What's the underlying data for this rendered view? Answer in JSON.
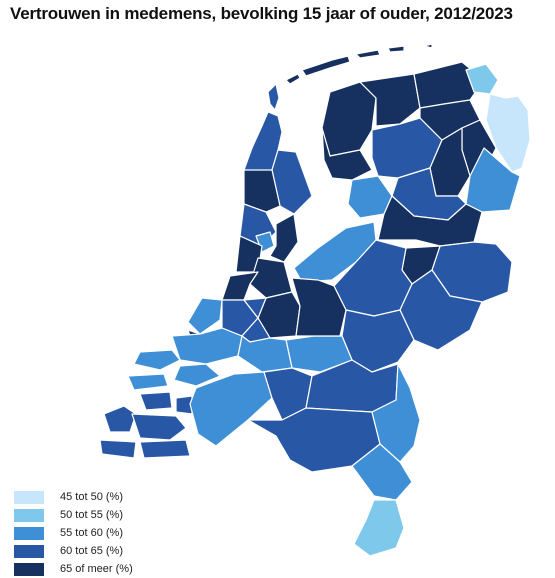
{
  "title": "Vertrouwen in medemens, bevolking 15 jaar of ouder, 2012/2023",
  "colors": {
    "c1": "#c8e6fb",
    "c2": "#7dc8eb",
    "c3": "#3f8fd6",
    "c4": "#2857a5",
    "c5": "#16305f",
    "water": "#ffffff",
    "border": "#ffffff"
  },
  "legend": [
    {
      "label": "45 tot 50 (%)",
      "color": "#c8e6fb"
    },
    {
      "label": "50 tot 55 (%)",
      "color": "#7dc8eb"
    },
    {
      "label": "55 tot 60 (%)",
      "color": "#3f8fd6"
    },
    {
      "label": "60 tot 65 (%)",
      "color": "#2857a5"
    },
    {
      "label": "65 of meer (%)",
      "color": "#16305f"
    }
  ]
}
